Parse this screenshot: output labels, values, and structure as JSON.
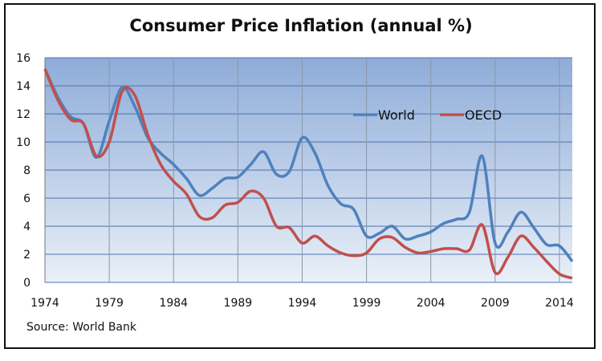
{
  "chart_data": {
    "type": "line",
    "title": "Consumer Price Inflation (annual %)",
    "source": "Source: World Bank",
    "xlabel": "",
    "ylabel": "",
    "xlim": [
      1974,
      2015
    ],
    "ylim": [
      0,
      16
    ],
    "x_ticks": [
      "1974",
      "1979",
      "1984",
      "1989",
      "1994",
      "1999",
      "2004",
      "2009",
      "2014"
    ],
    "y_ticks": [
      "0",
      "2",
      "4",
      "6",
      "8",
      "10",
      "12",
      "14",
      "16"
    ],
    "grid": true,
    "legend_position": "top-right",
    "x": [
      1974,
      1975,
      1976,
      1977,
      1978,
      1979,
      1980,
      1981,
      1982,
      1983,
      1984,
      1985,
      1986,
      1987,
      1988,
      1989,
      1990,
      1991,
      1992,
      1993,
      1994,
      1995,
      1996,
      1997,
      1998,
      1999,
      2000,
      2001,
      2002,
      2003,
      2004,
      2005,
      2006,
      2007,
      2008,
      2009,
      2010,
      2011,
      2012,
      2013,
      2014,
      2015
    ],
    "series": [
      {
        "name": "World",
        "color": "#4f81bd",
        "values": [
          15.2,
          13.2,
          11.8,
          11.3,
          8.9,
          11.5,
          13.9,
          12.5,
          10.3,
          9.2,
          8.4,
          7.4,
          6.2,
          6.7,
          7.4,
          7.5,
          8.4,
          9.3,
          7.7,
          7.9,
          10.3,
          9.2,
          6.9,
          5.6,
          5.2,
          3.3,
          3.5,
          4.0,
          3.1,
          3.3,
          3.6,
          4.2,
          4.5,
          5.0,
          9.0,
          2.8,
          3.6,
          5.0,
          3.9,
          2.7,
          2.6,
          1.5
        ]
      },
      {
        "name": "OECD",
        "color": "#c0504d",
        "values": [
          15.2,
          13.0,
          11.6,
          11.3,
          9.0,
          10.0,
          13.6,
          13.3,
          10.5,
          8.4,
          7.2,
          6.3,
          4.7,
          4.6,
          5.5,
          5.7,
          6.5,
          6.0,
          4.0,
          3.9,
          2.8,
          3.3,
          2.6,
          2.1,
          1.9,
          2.1,
          3.1,
          3.2,
          2.5,
          2.1,
          2.2,
          2.4,
          2.4,
          2.3,
          4.1,
          0.7,
          1.8,
          3.3,
          2.5,
          1.5,
          0.6,
          0.3
        ]
      }
    ]
  }
}
